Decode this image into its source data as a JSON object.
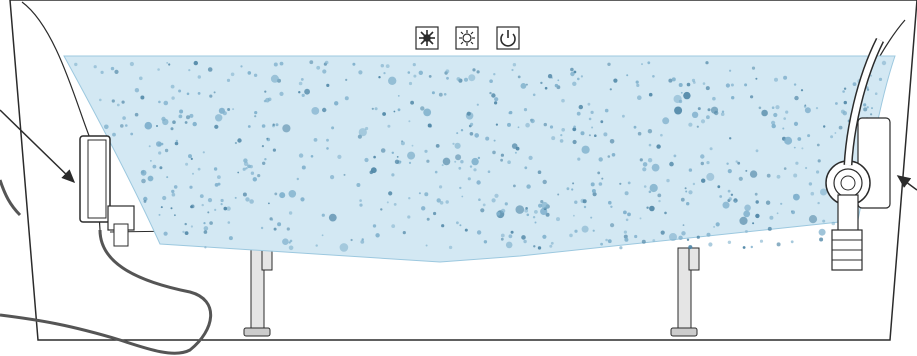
{
  "colors": {
    "outline": "#2b2b2b",
    "water": "#cfe5f1",
    "water_edge": "#9cc8df",
    "bubble": "#7fb0cc",
    "bubble_dark": "#4f86a6",
    "cable": "#555555",
    "leg": "#d9d9d9",
    "watermark": "#f1f1f1"
  },
  "control_panel": {
    "buttons": [
      {
        "name": "massage-mode-button",
        "icon": "snowflake-icon"
      },
      {
        "name": "heat-mode-button",
        "icon": "sun-icon"
      },
      {
        "name": "power-button",
        "icon": "power-icon"
      }
    ]
  },
  "annotations": {
    "arrows": [
      "left-arrow",
      "right-arrow"
    ]
  }
}
